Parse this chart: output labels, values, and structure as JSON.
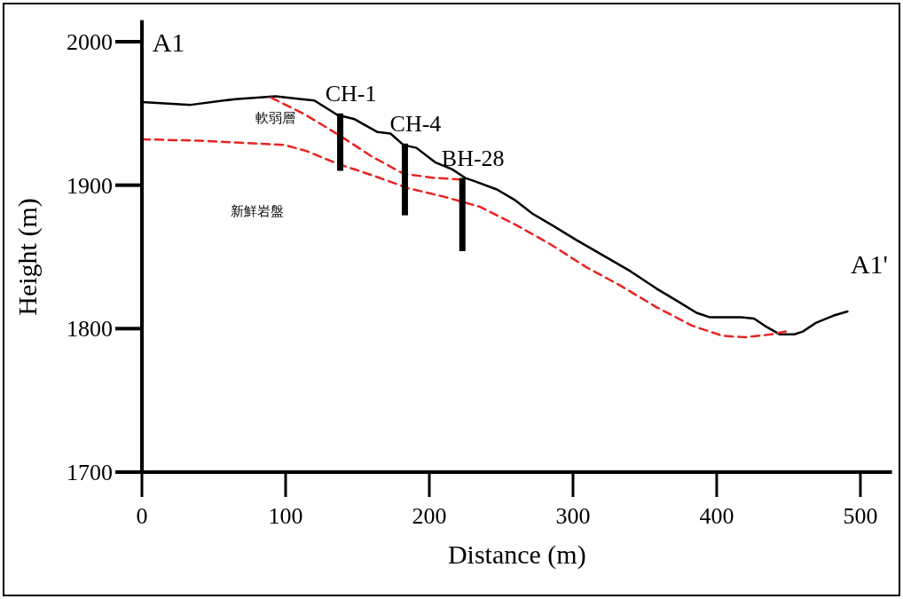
{
  "chart_data": {
    "type": "line",
    "xlabel": "Distance (m)",
    "ylabel": "Height (m)",
    "xlim": [
      0,
      522
    ],
    "ylim": [
      1700,
      2015
    ],
    "xticks": [
      0,
      100,
      200,
      300,
      400,
      500
    ],
    "yticks": [
      1700,
      1800,
      1900,
      2000
    ],
    "grid": false,
    "marker": "none",
    "series": [
      {
        "color": "#000000",
        "line_style": "solid",
        "x": [
          0,
          34,
          65,
          93,
          111,
          120,
          136,
          148,
          164,
          173,
          182,
          191,
          204,
          216,
          225,
          231,
          247,
          259,
          272,
          284,
          302,
          321,
          340,
          358,
          373,
          386,
          395,
          417,
          426,
          435,
          444,
          454,
          460,
          469,
          481,
          491
        ],
        "values": [
          1958,
          1956,
          1960,
          1962,
          1960,
          1959,
          1949,
          1946,
          1937,
          1936,
          1928,
          1926,
          1916,
          1911,
          1905,
          1903,
          1897,
          1890,
          1880,
          1873,
          1862,
          1851,
          1840,
          1828,
          1819,
          1811,
          1808,
          1808,
          1807,
          1801,
          1796,
          1796,
          1798,
          1804,
          1809,
          1812
        ]
      },
      {
        "color": "#e8231f",
        "line_style": "dashed",
        "x": [
          90,
          114,
          137,
          160,
          182,
          204,
          222
        ],
        "values": [
          1961,
          1949,
          1935,
          1920,
          1908,
          1905,
          1904
        ]
      },
      {
        "color": "#e8231f",
        "line_style": "dashed",
        "x": [
          0,
          40,
          99,
          114,
          136,
          160,
          185,
          210,
          235,
          259,
          284,
          309,
          333,
          358,
          383,
          404,
          420,
          438,
          448
        ],
        "values": [
          1932,
          1931,
          1928,
          1924,
          1915,
          1907,
          1898,
          1892,
          1885,
          1873,
          1859,
          1843,
          1830,
          1815,
          1802,
          1795,
          1794,
          1796,
          1798
        ]
      },
      {
        "name": "CH-1",
        "color": "#000000",
        "line_style": "solid",
        "x": [
          138,
          138
        ],
        "values": [
          1950,
          1910
        ]
      },
      {
        "name": "CH-4",
        "color": "#000000",
        "line_style": "solid",
        "x": [
          183,
          183
        ],
        "values": [
          1929,
          1879
        ]
      },
      {
        "name": "BH-28",
        "color": "#000000",
        "line_style": "solid",
        "x": [
          223,
          223
        ],
        "values": [
          1905,
          1854
        ]
      }
    ],
    "annotations": [
      "A1",
      "A1'",
      "軟弱層",
      "新鮮岩盤"
    ]
  }
}
